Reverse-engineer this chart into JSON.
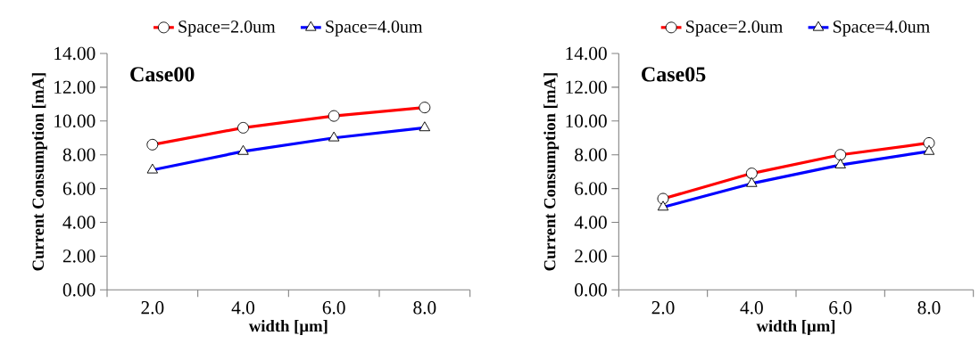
{
  "chart_data": [
    {
      "type": "line",
      "title": "Case00",
      "xlabel": "width  [µm]",
      "ylabel": "Current  Consumption  [mA]",
      "categories": [
        "2.0",
        "4.0",
        "6.0",
        "8.0"
      ],
      "series": [
        {
          "name": "Space=2.0um",
          "color": "#ff0000",
          "marker": "circle",
          "values": [
            8.6,
            9.6,
            10.3,
            10.8
          ]
        },
        {
          "name": "Space=4.0um",
          "color": "#0000ff",
          "marker": "triangle",
          "values": [
            7.1,
            8.2,
            9.0,
            9.6
          ]
        }
      ],
      "ylim": [
        0,
        14
      ],
      "yticks": [
        {
          "value": 0,
          "label": "0.00"
        },
        {
          "value": 2,
          "label": "2.00"
        },
        {
          "value": 4,
          "label": "4.00"
        },
        {
          "value": 6,
          "label": "6.00"
        },
        {
          "value": 8,
          "label": "8.00"
        },
        {
          "value": 10,
          "label": "10.00"
        },
        {
          "value": 12,
          "label": "12.00"
        },
        {
          "value": 14,
          "label": "14.00"
        }
      ],
      "grid": false,
      "legend": "top",
      "line_style": "solid"
    },
    {
      "type": "line",
      "title": "Case05",
      "xlabel": "width  [µm]",
      "ylabel": "Current  Consumption  [mA]",
      "categories": [
        "2.0",
        "4.0",
        "6.0",
        "8.0"
      ],
      "series": [
        {
          "name": "Space=2.0um",
          "color": "#ff0000",
          "marker": "circle",
          "values": [
            5.4,
            6.9,
            8.0,
            8.7
          ]
        },
        {
          "name": "Space=4.0um",
          "color": "#0000ff",
          "marker": "triangle",
          "values": [
            4.9,
            6.3,
            7.4,
            8.2
          ]
        }
      ],
      "ylim": [
        0,
        14
      ],
      "yticks": [
        {
          "value": 0,
          "label": "0.00"
        },
        {
          "value": 2,
          "label": "2.00"
        },
        {
          "value": 4,
          "label": "4.00"
        },
        {
          "value": 6,
          "label": "6.00"
        },
        {
          "value": 8,
          "label": "8.00"
        },
        {
          "value": 10,
          "label": "10.00"
        },
        {
          "value": 12,
          "label": "12.00"
        },
        {
          "value": 14,
          "label": "14.00"
        }
      ],
      "grid": false,
      "legend": "top",
      "line_style": "solid"
    }
  ]
}
